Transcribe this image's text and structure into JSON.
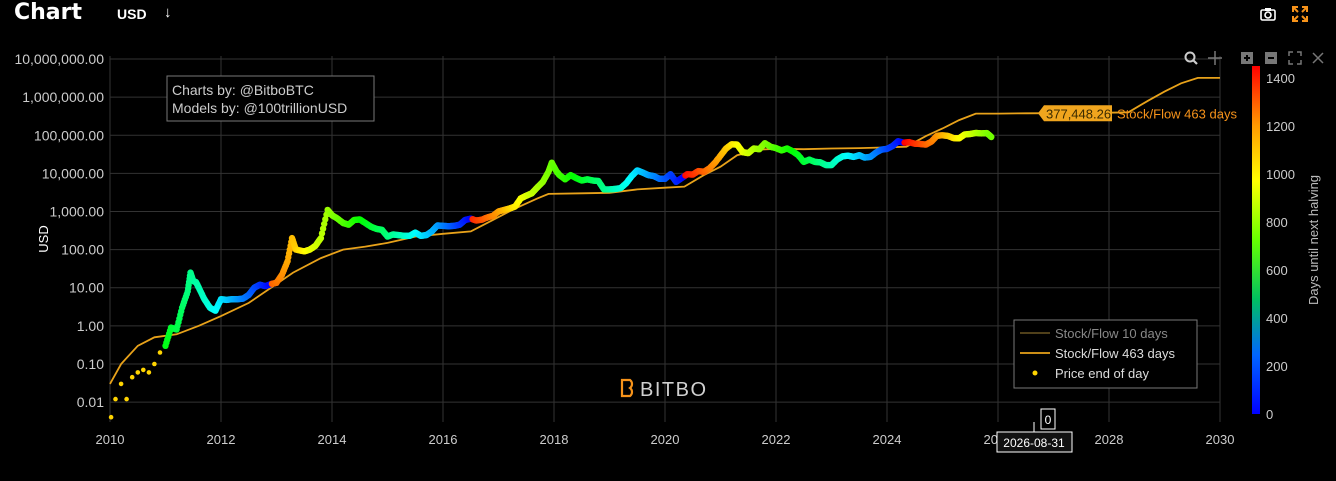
{
  "header": {
    "title": "Chart",
    "currency": "USD"
  },
  "colors": {
    "background": "#000000",
    "grid": "#333333",
    "model_line": "#e8a21a",
    "model_line_faint": "#5c4a1e",
    "price_dot": "#ffd400",
    "accent": "#f7931a"
  },
  "credits": {
    "line1": "Charts by: @BitboBTC",
    "line2": "Models by: @100trillionUSD"
  },
  "watermark": "BITBO",
  "toolbar_icons": [
    "zoom-icon",
    "pan-icon",
    "zoom-in-icon",
    "zoom-out-icon",
    "autoscale-icon",
    "reset-axes-icon"
  ],
  "model_label": {
    "value": "377,448.26",
    "name": "Stock/Flow 463 days"
  },
  "hover": {
    "date": "2026-08-31",
    "value": "0"
  },
  "chart_data": {
    "type": "scatter",
    "ylabel": "USD",
    "yscale": "log",
    "xlim": [
      2010,
      2030
    ],
    "ylim": [
      0.003,
      12000000
    ],
    "x_ticks": [
      "2010",
      "2012",
      "2014",
      "2016",
      "2018",
      "2020",
      "2022",
      "2024",
      "2026",
      "2028",
      "2030"
    ],
    "y_ticks": [
      {
        "value": 0.01,
        "label": "0.01"
      },
      {
        "value": 0.1,
        "label": "0.10"
      },
      {
        "value": 1,
        "label": "1.00"
      },
      {
        "value": 10,
        "label": "10.00"
      },
      {
        "value": 100,
        "label": "100.00"
      },
      {
        "value": 1000,
        "label": "1,000.00"
      },
      {
        "value": 10000,
        "label": "10,000.00"
      },
      {
        "value": 100000,
        "label": "100,000.00"
      },
      {
        "value": 1000000,
        "label": "1,000,000.00"
      },
      {
        "value": 10000000,
        "label": "10,000,000.00"
      }
    ],
    "colorbar": {
      "title": "Days until next halving",
      "range": [
        0,
        1450
      ],
      "ticks": [
        0,
        200,
        400,
        600,
        800,
        1000,
        1200,
        1400
      ]
    },
    "legend": {
      "position": "bottom-right",
      "entries": [
        {
          "name": "Stock/Flow 10 days",
          "style": "line-faint"
        },
        {
          "name": "Stock/Flow 463 days",
          "style": "line"
        },
        {
          "name": "Price end of day",
          "style": "dot"
        }
      ]
    },
    "price_series": {
      "name": "Price end of day",
      "points": [
        [
          2010.02,
          0.004
        ],
        [
          2010.1,
          0.012
        ],
        [
          2010.2,
          0.03
        ],
        [
          2010.3,
          0.012
        ],
        [
          2010.4,
          0.045
        ],
        [
          2010.5,
          0.06
        ],
        [
          2010.6,
          0.07
        ],
        [
          2010.7,
          0.06
        ],
        [
          2010.8,
          0.1
        ],
        [
          2010.9,
          0.2
        ],
        [
          2011.0,
          0.3
        ],
        [
          2011.1,
          0.9
        ],
        [
          2011.2,
          0.8
        ],
        [
          2011.3,
          3
        ],
        [
          2011.4,
          8
        ],
        [
          2011.45,
          25
        ],
        [
          2011.5,
          15
        ],
        [
          2011.55,
          14
        ],
        [
          2011.6,
          10
        ],
        [
          2011.7,
          5
        ],
        [
          2011.8,
          3
        ],
        [
          2011.9,
          2.5
        ],
        [
          2012.0,
          5
        ],
        [
          2012.1,
          4.8
        ],
        [
          2012.2,
          5
        ],
        [
          2012.3,
          5
        ],
        [
          2012.4,
          5.2
        ],
        [
          2012.5,
          6.5
        ],
        [
          2012.6,
          10
        ],
        [
          2012.7,
          12
        ],
        [
          2012.8,
          11
        ],
        [
          2012.9,
          12.5
        ],
        [
          2013.0,
          13.5
        ],
        [
          2013.1,
          22
        ],
        [
          2013.2,
          50
        ],
        [
          2013.28,
          200
        ],
        [
          2013.35,
          100
        ],
        [
          2013.5,
          90
        ],
        [
          2013.6,
          100
        ],
        [
          2013.7,
          125
        ],
        [
          2013.8,
          200
        ],
        [
          2013.92,
          1100
        ],
        [
          2014.0,
          800
        ],
        [
          2014.1,
          650
        ],
        [
          2014.2,
          500
        ],
        [
          2014.3,
          450
        ],
        [
          2014.4,
          600
        ],
        [
          2014.5,
          620
        ],
        [
          2014.6,
          500
        ],
        [
          2014.7,
          400
        ],
        [
          2014.8,
          350
        ],
        [
          2014.9,
          330
        ],
        [
          2015.0,
          220
        ],
        [
          2015.1,
          250
        ],
        [
          2015.2,
          240
        ],
        [
          2015.3,
          230
        ],
        [
          2015.4,
          230
        ],
        [
          2015.5,
          280
        ],
        [
          2015.6,
          230
        ],
        [
          2015.7,
          240
        ],
        [
          2015.8,
          300
        ],
        [
          2015.9,
          430
        ],
        [
          2016.0,
          420
        ],
        [
          2016.1,
          410
        ],
        [
          2016.2,
          420
        ],
        [
          2016.3,
          450
        ],
        [
          2016.4,
          600
        ],
        [
          2016.5,
          650
        ],
        [
          2016.6,
          580
        ],
        [
          2016.7,
          610
        ],
        [
          2016.8,
          700
        ],
        [
          2016.9,
          770
        ],
        [
          2017.0,
          1000
        ],
        [
          2017.1,
          1100
        ],
        [
          2017.2,
          1200
        ],
        [
          2017.3,
          1350
        ],
        [
          2017.4,
          2200
        ],
        [
          2017.5,
          2600
        ],
        [
          2017.6,
          3000
        ],
        [
          2017.7,
          4300
        ],
        [
          2017.8,
          6000
        ],
        [
          2017.9,
          11000
        ],
        [
          2017.96,
          19000
        ],
        [
          2018.05,
          11000
        ],
        [
          2018.1,
          9000
        ],
        [
          2018.2,
          7000
        ],
        [
          2018.3,
          9000
        ],
        [
          2018.4,
          7500
        ],
        [
          2018.5,
          6500
        ],
        [
          2018.6,
          7000
        ],
        [
          2018.7,
          6500
        ],
        [
          2018.8,
          6300
        ],
        [
          2018.9,
          3800
        ],
        [
          2019.0,
          3800
        ],
        [
          2019.1,
          3900
        ],
        [
          2019.2,
          4100
        ],
        [
          2019.3,
          5500
        ],
        [
          2019.4,
          8500
        ],
        [
          2019.5,
          12000
        ],
        [
          2019.6,
          10500
        ],
        [
          2019.7,
          9000
        ],
        [
          2019.8,
          8500
        ],
        [
          2019.9,
          7200
        ],
        [
          2020.0,
          7200
        ],
        [
          2020.1,
          9500
        ],
        [
          2020.2,
          6000
        ],
        [
          2020.3,
          7500
        ],
        [
          2020.4,
          9500
        ],
        [
          2020.5,
          9300
        ],
        [
          2020.6,
          11500
        ],
        [
          2020.7,
          11000
        ],
        [
          2020.8,
          13500
        ],
        [
          2020.9,
          19000
        ],
        [
          2021.0,
          29000
        ],
        [
          2021.1,
          45000
        ],
        [
          2021.2,
          58000
        ],
        [
          2021.3,
          57000
        ],
        [
          2021.4,
          36000
        ],
        [
          2021.5,
          34000
        ],
        [
          2021.6,
          45000
        ],
        [
          2021.7,
          43000
        ],
        [
          2021.8,
          62000
        ],
        [
          2021.9,
          50000
        ],
        [
          2022.0,
          46000
        ],
        [
          2022.1,
          40000
        ],
        [
          2022.2,
          45000
        ],
        [
          2022.3,
          38000
        ],
        [
          2022.4,
          30000
        ],
        [
          2022.5,
          20000
        ],
        [
          2022.6,
          23000
        ],
        [
          2022.7,
          20000
        ],
        [
          2022.8,
          19500
        ],
        [
          2022.9,
          16500
        ],
        [
          2023.0,
          16500
        ],
        [
          2023.1,
          23000
        ],
        [
          2023.2,
          28000
        ],
        [
          2023.3,
          29000
        ],
        [
          2023.4,
          27000
        ],
        [
          2023.5,
          30000
        ],
        [
          2023.6,
          26000
        ],
        [
          2023.7,
          27000
        ],
        [
          2023.8,
          35000
        ],
        [
          2023.9,
          42000
        ],
        [
          2024.0,
          44000
        ],
        [
          2024.1,
          52000
        ],
        [
          2024.2,
          70000
        ],
        [
          2024.3,
          64000
        ],
        [
          2024.4,
          66000
        ],
        [
          2024.5,
          60000
        ],
        [
          2024.6,
          59000
        ],
        [
          2024.7,
          57000
        ],
        [
          2024.8,
          68000
        ],
        [
          2024.9,
          97000
        ],
        [
          2025.0,
          100000
        ],
        [
          2025.1,
          96000
        ],
        [
          2025.2,
          84000
        ],
        [
          2025.3,
          83000
        ],
        [
          2025.4,
          105000
        ],
        [
          2025.5,
          108000
        ],
        [
          2025.6,
          115000
        ],
        [
          2025.7,
          112000
        ],
        [
          2025.8,
          114000
        ],
        [
          2025.88,
          90000
        ]
      ]
    },
    "sf463_series": {
      "name": "Stock/Flow 463 days",
      "points": [
        [
          2010.0,
          0.03
        ],
        [
          2010.2,
          0.1
        ],
        [
          2010.5,
          0.3
        ],
        [
          2010.8,
          0.5
        ],
        [
          2011.2,
          0.6
        ],
        [
          2011.6,
          1.0
        ],
        [
          2012.0,
          1.8
        ],
        [
          2012.5,
          4
        ],
        [
          2012.9,
          10
        ],
        [
          2013.3,
          25
        ],
        [
          2013.8,
          60
        ],
        [
          2014.2,
          100
        ],
        [
          2014.6,
          120
        ],
        [
          2015.0,
          150
        ],
        [
          2015.5,
          220
        ],
        [
          2016.0,
          260
        ],
        [
          2016.5,
          300
        ],
        [
          2016.9,
          600
        ],
        [
          2017.3,
          1200
        ],
        [
          2017.7,
          2200
        ],
        [
          2017.9,
          2900
        ],
        [
          2018.5,
          3000
        ],
        [
          2019.0,
          3100
        ],
        [
          2019.5,
          3800
        ],
        [
          2020.0,
          4200
        ],
        [
          2020.35,
          4500
        ],
        [
          2020.7,
          9000
        ],
        [
          2021.0,
          15000
        ],
        [
          2021.3,
          30000
        ],
        [
          2021.7,
          42000
        ],
        [
          2022.0,
          44000
        ],
        [
          2022.5,
          43000
        ],
        [
          2023.0,
          45000
        ],
        [
          2023.5,
          46000
        ],
        [
          2024.0,
          48000
        ],
        [
          2024.35,
          50000
        ],
        [
          2024.7,
          95000
        ],
        [
          2025.0,
          150000
        ],
        [
          2025.3,
          250000
        ],
        [
          2025.6,
          370000
        ],
        [
          2026.0,
          370000
        ],
        [
          2026.5,
          377000
        ],
        [
          2027.0,
          380000
        ],
        [
          2027.5,
          385000
        ],
        [
          2028.0,
          390000
        ],
        [
          2028.35,
          400000
        ],
        [
          2028.7,
          800000
        ],
        [
          2029.0,
          1400000
        ],
        [
          2029.3,
          2300000
        ],
        [
          2029.6,
          3200000
        ],
        [
          2030.0,
          3200000
        ]
      ]
    },
    "sf10_series": {
      "name": "Stock/Flow 10 days",
      "points": []
    }
  }
}
